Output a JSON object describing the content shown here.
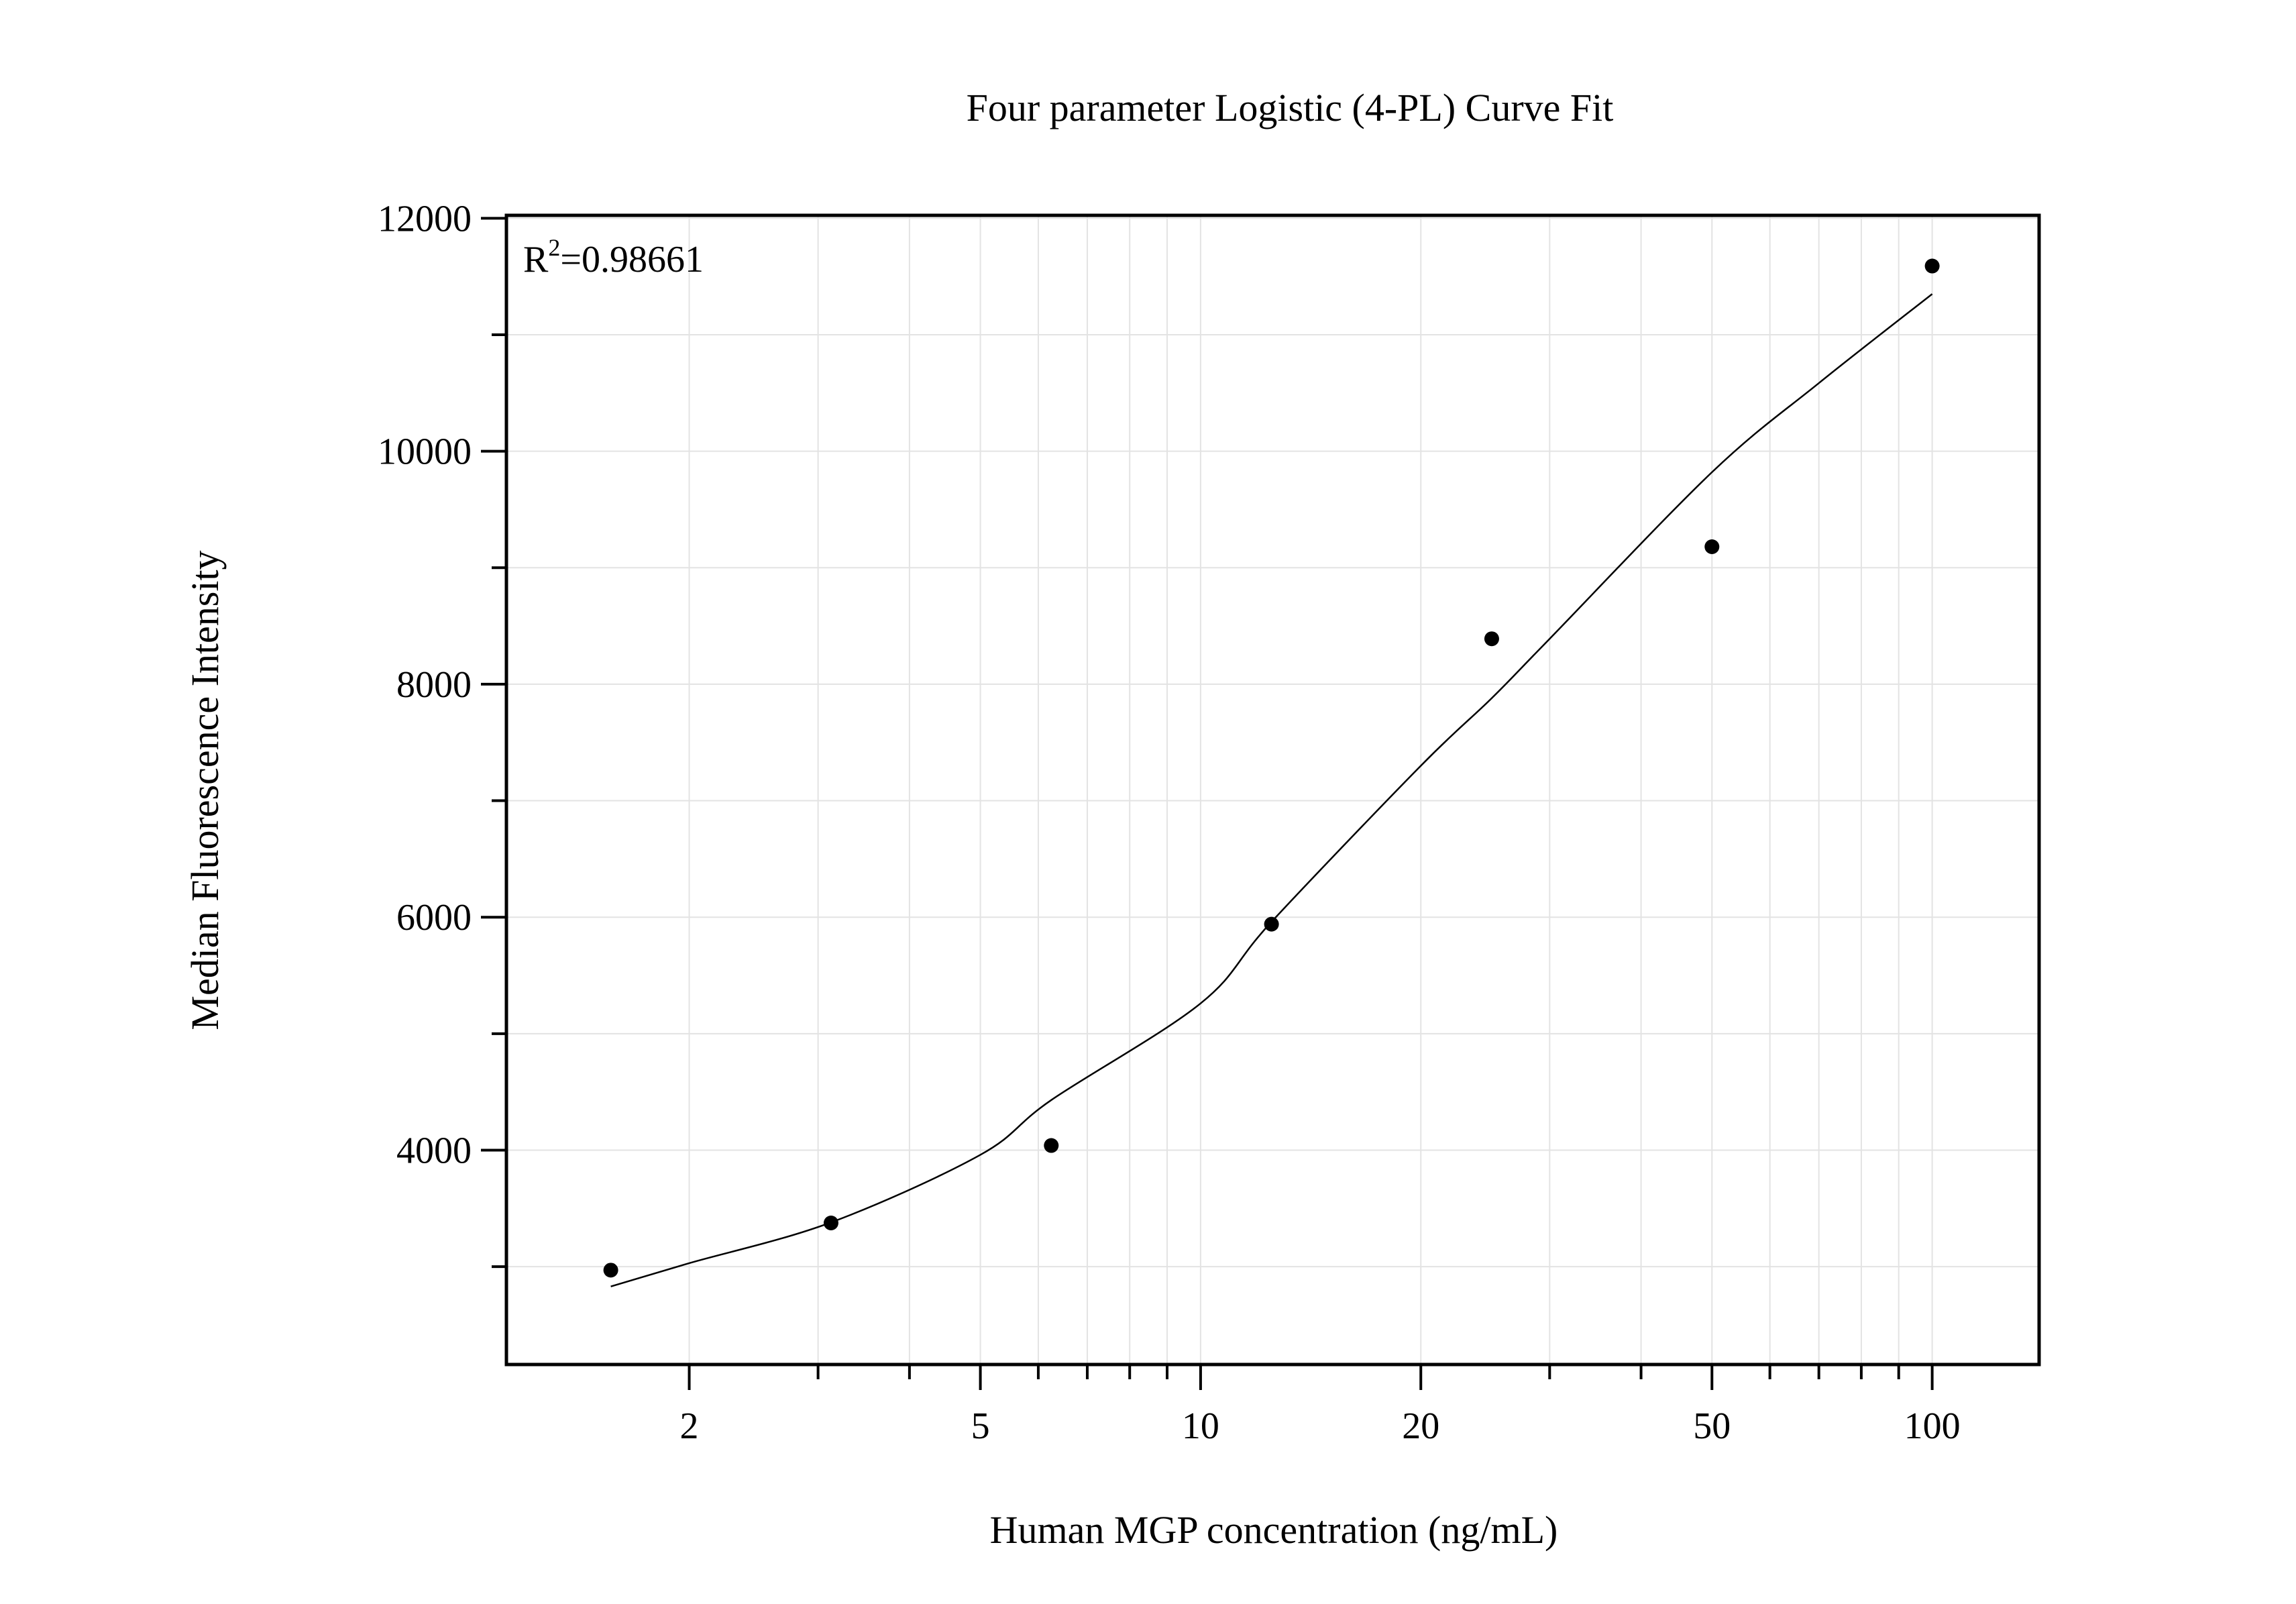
{
  "chart_data": {
    "type": "scatter",
    "title": "Four parameter Logistic (4-PL) Curve Fit",
    "xlabel": "Human MGP concentration (ng/mL)",
    "ylabel": "Median Fluorescence Intensity",
    "annotation": {
      "prefix": "R",
      "sup": "2",
      "text": "=0.98661"
    },
    "x_scale": "log",
    "xlim": [
      1.125,
      140
    ],
    "ylim": [
      2160,
      12025
    ],
    "x_ticks": [
      2,
      5,
      10,
      20,
      50,
      100
    ],
    "x_tick_labels": [
      "2",
      "5",
      "10",
      "20",
      "50",
      "100"
    ],
    "x_minor_ticks": [
      3,
      4,
      6,
      7,
      8,
      9,
      30,
      40,
      60,
      70,
      80,
      90
    ],
    "y_ticks": [
      4000,
      6000,
      8000,
      10000,
      12000
    ],
    "y_tick_labels": [
      "4000",
      "6000",
      "8000",
      "10000",
      "12000"
    ],
    "y_minor_ticks": [
      3000,
      5000,
      7000,
      9000,
      11000
    ],
    "grid": true,
    "points": {
      "x": [
        1.5625,
        3.125,
        6.25,
        12.5,
        25,
        50,
        100
      ],
      "y": [
        2970,
        3375,
        4040,
        5940,
        8390,
        9180,
        11590
      ]
    },
    "fit_curve": {
      "x": [
        1.5625,
        2,
        3.125,
        5,
        6.25,
        10,
        12.5,
        20,
        25,
        30,
        50,
        70,
        100
      ],
      "y": [
        2830,
        3030,
        3380,
        3960,
        4430,
        5260,
        5960,
        7300,
        7880,
        8390,
        9820,
        10585,
        11350
      ]
    },
    "colors": {
      "points": "#000000",
      "curve": "#000000",
      "grid": "#e3e3e3",
      "axes": "#000000"
    }
  }
}
